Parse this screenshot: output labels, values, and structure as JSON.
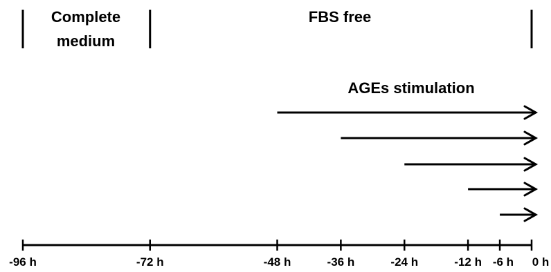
{
  "phases": {
    "complete_medium": [
      "Complete",
      "medium"
    ],
    "fbs_free": "FBS free"
  },
  "stimulation_label": "AGEs stimulation",
  "timeline": {
    "ticks": [
      {
        "t": -96,
        "label": "-96 h"
      },
      {
        "t": -72,
        "label": "-72 h"
      },
      {
        "t": -48,
        "label": "-48 h"
      },
      {
        "t": -36,
        "label": "-36 h"
      },
      {
        "t": -24,
        "label": "-24 h"
      },
      {
        "t": -12,
        "label": "-12 h"
      },
      {
        "t": -6,
        "label": "-6 h"
      },
      {
        "t": 0,
        "label": "0 h"
      }
    ],
    "phase_boundaries": [
      -96,
      -72,
      0
    ]
  },
  "arrows": [
    {
      "start": -48,
      "end": 0
    },
    {
      "start": -36,
      "end": 0
    },
    {
      "start": -24,
      "end": 0
    },
    {
      "start": -12,
      "end": 0
    },
    {
      "start": -6,
      "end": 0
    }
  ],
  "colors": {
    "ink": "#000000",
    "background": "#ffffff"
  }
}
